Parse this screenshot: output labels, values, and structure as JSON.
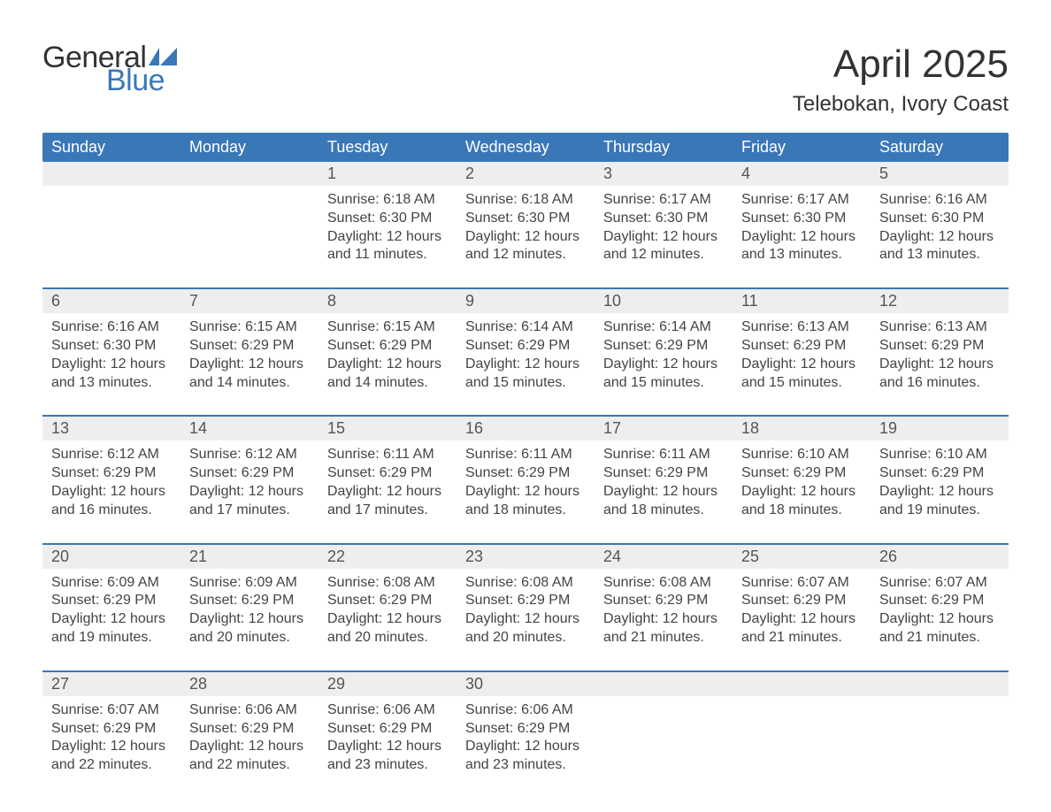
{
  "logo": {
    "text1": "General",
    "text2": "Blue",
    "flag_color": "#3a77b7",
    "text1_color": "#333333"
  },
  "title": "April 2025",
  "location": "Telebokan, Ivory Coast",
  "colors": {
    "header_bg": "#3a77b7",
    "daynum_bg": "#eeeeee",
    "border": "#3a77b7",
    "text": "#444444",
    "page_bg": "#ffffff"
  },
  "dow": [
    "Sunday",
    "Monday",
    "Tuesday",
    "Wednesday",
    "Thursday",
    "Friday",
    "Saturday"
  ],
  "weeks": [
    {
      "days": [
        {
          "n": "",
          "sunrise": "",
          "sunset": "",
          "daylight": ""
        },
        {
          "n": "",
          "sunrise": "",
          "sunset": "",
          "daylight": ""
        },
        {
          "n": "1",
          "sunrise": "6:18 AM",
          "sunset": "6:30 PM",
          "daylight": "12 hours and 11 minutes."
        },
        {
          "n": "2",
          "sunrise": "6:18 AM",
          "sunset": "6:30 PM",
          "daylight": "12 hours and 12 minutes."
        },
        {
          "n": "3",
          "sunrise": "6:17 AM",
          "sunset": "6:30 PM",
          "daylight": "12 hours and 12 minutes."
        },
        {
          "n": "4",
          "sunrise": "6:17 AM",
          "sunset": "6:30 PM",
          "daylight": "12 hours and 13 minutes."
        },
        {
          "n": "5",
          "sunrise": "6:16 AM",
          "sunset": "6:30 PM",
          "daylight": "12 hours and 13 minutes."
        }
      ]
    },
    {
      "days": [
        {
          "n": "6",
          "sunrise": "6:16 AM",
          "sunset": "6:30 PM",
          "daylight": "12 hours and 13 minutes."
        },
        {
          "n": "7",
          "sunrise": "6:15 AM",
          "sunset": "6:29 PM",
          "daylight": "12 hours and 14 minutes."
        },
        {
          "n": "8",
          "sunrise": "6:15 AM",
          "sunset": "6:29 PM",
          "daylight": "12 hours and 14 minutes."
        },
        {
          "n": "9",
          "sunrise": "6:14 AM",
          "sunset": "6:29 PM",
          "daylight": "12 hours and 15 minutes."
        },
        {
          "n": "10",
          "sunrise": "6:14 AM",
          "sunset": "6:29 PM",
          "daylight": "12 hours and 15 minutes."
        },
        {
          "n": "11",
          "sunrise": "6:13 AM",
          "sunset": "6:29 PM",
          "daylight": "12 hours and 15 minutes."
        },
        {
          "n": "12",
          "sunrise": "6:13 AM",
          "sunset": "6:29 PM",
          "daylight": "12 hours and 16 minutes."
        }
      ]
    },
    {
      "days": [
        {
          "n": "13",
          "sunrise": "6:12 AM",
          "sunset": "6:29 PM",
          "daylight": "12 hours and 16 minutes."
        },
        {
          "n": "14",
          "sunrise": "6:12 AM",
          "sunset": "6:29 PM",
          "daylight": "12 hours and 17 minutes."
        },
        {
          "n": "15",
          "sunrise": "6:11 AM",
          "sunset": "6:29 PM",
          "daylight": "12 hours and 17 minutes."
        },
        {
          "n": "16",
          "sunrise": "6:11 AM",
          "sunset": "6:29 PM",
          "daylight": "12 hours and 18 minutes."
        },
        {
          "n": "17",
          "sunrise": "6:11 AM",
          "sunset": "6:29 PM",
          "daylight": "12 hours and 18 minutes."
        },
        {
          "n": "18",
          "sunrise": "6:10 AM",
          "sunset": "6:29 PM",
          "daylight": "12 hours and 18 minutes."
        },
        {
          "n": "19",
          "sunrise": "6:10 AM",
          "sunset": "6:29 PM",
          "daylight": "12 hours and 19 minutes."
        }
      ]
    },
    {
      "days": [
        {
          "n": "20",
          "sunrise": "6:09 AM",
          "sunset": "6:29 PM",
          "daylight": "12 hours and 19 minutes."
        },
        {
          "n": "21",
          "sunrise": "6:09 AM",
          "sunset": "6:29 PM",
          "daylight": "12 hours and 20 minutes."
        },
        {
          "n": "22",
          "sunrise": "6:08 AM",
          "sunset": "6:29 PM",
          "daylight": "12 hours and 20 minutes."
        },
        {
          "n": "23",
          "sunrise": "6:08 AM",
          "sunset": "6:29 PM",
          "daylight": "12 hours and 20 minutes."
        },
        {
          "n": "24",
          "sunrise": "6:08 AM",
          "sunset": "6:29 PM",
          "daylight": "12 hours and 21 minutes."
        },
        {
          "n": "25",
          "sunrise": "6:07 AM",
          "sunset": "6:29 PM",
          "daylight": "12 hours and 21 minutes."
        },
        {
          "n": "26",
          "sunrise": "6:07 AM",
          "sunset": "6:29 PM",
          "daylight": "12 hours and 21 minutes."
        }
      ]
    },
    {
      "days": [
        {
          "n": "27",
          "sunrise": "6:07 AM",
          "sunset": "6:29 PM",
          "daylight": "12 hours and 22 minutes."
        },
        {
          "n": "28",
          "sunrise": "6:06 AM",
          "sunset": "6:29 PM",
          "daylight": "12 hours and 22 minutes."
        },
        {
          "n": "29",
          "sunrise": "6:06 AM",
          "sunset": "6:29 PM",
          "daylight": "12 hours and 23 minutes."
        },
        {
          "n": "30",
          "sunrise": "6:06 AM",
          "sunset": "6:29 PM",
          "daylight": "12 hours and 23 minutes."
        },
        {
          "n": "",
          "sunrise": "",
          "sunset": "",
          "daylight": ""
        },
        {
          "n": "",
          "sunrise": "",
          "sunset": "",
          "daylight": ""
        },
        {
          "n": "",
          "sunrise": "",
          "sunset": "",
          "daylight": ""
        }
      ]
    }
  ],
  "labels": {
    "sunrise": "Sunrise:",
    "sunset": "Sunset:",
    "daylight": "Daylight:"
  }
}
